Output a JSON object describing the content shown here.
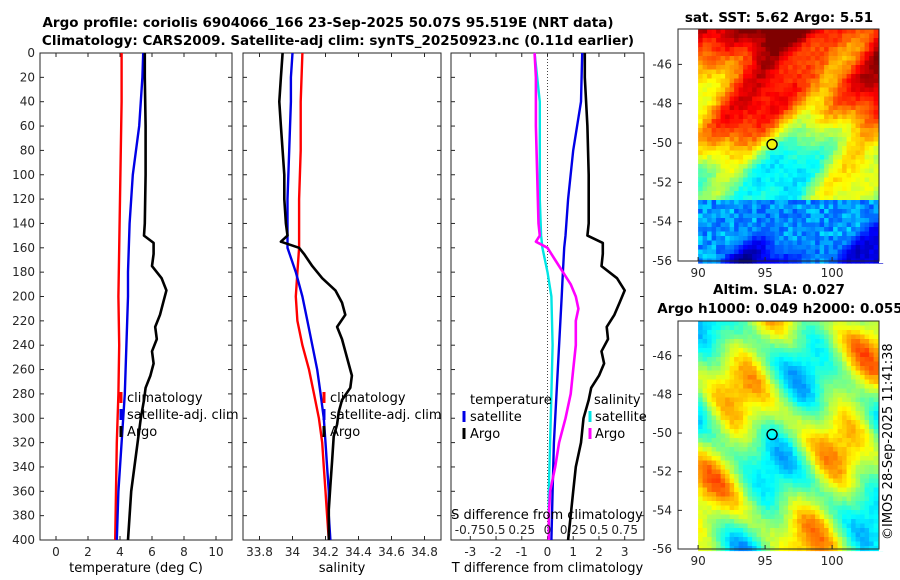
{
  "header": {
    "line1": "Argo profile: coriolis 6904066_166 23-Sep-2025 50.07S 95.519E (NRT data)",
    "line2": "Climatology: CARS2009. Satellite-adj clim: synTS_20250923.nc (0.11d earlier)"
  },
  "watermark": "©IMOS 28-Sep-2025 11:41:38",
  "colors": {
    "climatology": "#ff0000",
    "satellite": "#0000e6",
    "argo": "#000000",
    "salinity_diff": "#ff00ff",
    "temperature_diff": "#00e5e5"
  },
  "chart_data": [
    {
      "type": "line",
      "id": "temperature",
      "xlabel": "temperature (deg C)",
      "xlim": [
        -1,
        11
      ],
      "xticks": [
        "0",
        "2",
        "4",
        "6",
        "8",
        "10"
      ],
      "xtick_values": [
        0,
        2,
        4,
        6,
        8,
        10
      ],
      "ylim": [
        0,
        400
      ],
      "yticks": [
        "0",
        "20",
        "40",
        "60",
        "80",
        "100",
        "120",
        "140",
        "160",
        "180",
        "200",
        "220",
        "240",
        "260",
        "280",
        "300",
        "320",
        "340",
        "360",
        "380",
        "400"
      ],
      "legend": [
        "climatology",
        "satellite-adj. clim",
        "Argo"
      ],
      "series": [
        {
          "name": "climatology",
          "depth": [
            0,
            40,
            80,
            120,
            160,
            200,
            240,
            280,
            320,
            360,
            400
          ],
          "values": [
            4.1,
            4.1,
            4.05,
            4.0,
            3.95,
            3.9,
            3.95,
            3.9,
            3.8,
            3.75,
            3.7
          ]
        },
        {
          "name": "satellite-adj. clim",
          "depth": [
            0,
            20,
            60,
            80,
            100,
            120,
            140,
            160,
            180,
            200,
            220,
            240,
            260,
            280,
            300,
            320,
            340,
            360,
            380,
            400
          ],
          "values": [
            5.45,
            5.4,
            5.2,
            5.0,
            4.8,
            4.7,
            4.6,
            4.55,
            4.5,
            4.5,
            4.45,
            4.4,
            4.35,
            4.3,
            4.2,
            4.1,
            4.0,
            3.9,
            3.85,
            3.8
          ]
        },
        {
          "name": "Argo",
          "depth": [
            0,
            20,
            60,
            100,
            140,
            150,
            156,
            165,
            175,
            185,
            195,
            205,
            215,
            225,
            235,
            245,
            255,
            265,
            275,
            285,
            300,
            320,
            340,
            360,
            380,
            400
          ],
          "values": [
            5.55,
            5.55,
            5.6,
            5.6,
            5.55,
            5.5,
            6.1,
            6.1,
            6.0,
            6.6,
            6.9,
            6.7,
            6.5,
            6.2,
            6.3,
            6.0,
            6.1,
            5.9,
            5.6,
            5.5,
            5.3,
            5.1,
            4.9,
            4.7,
            4.6,
            4.5
          ]
        }
      ]
    },
    {
      "type": "line",
      "id": "salinity",
      "xlabel": "salinity",
      "xlim": [
        33.7,
        34.9
      ],
      "xticks": [
        "33.8",
        "34",
        "34.2",
        "34.4",
        "34.6",
        "34.8"
      ],
      "xtick_values": [
        33.8,
        34.0,
        34.2,
        34.4,
        34.6,
        34.8
      ],
      "ylim": [
        0,
        400
      ],
      "legend": [
        "climatology",
        "satellite-adj. clim",
        "Argo"
      ],
      "series": [
        {
          "name": "climatology",
          "depth": [
            0,
            40,
            80,
            120,
            160,
            180,
            200,
            220,
            240,
            260,
            280,
            300,
            320,
            340,
            360,
            380,
            400
          ],
          "values": [
            34.06,
            34.05,
            34.05,
            34.04,
            34.04,
            34.03,
            34.02,
            34.03,
            34.06,
            34.1,
            34.13,
            34.16,
            34.18,
            34.19,
            34.2,
            34.21,
            34.22
          ]
        },
        {
          "name": "satellite-adj. clim",
          "depth": [
            0,
            20,
            40,
            80,
            120,
            160,
            180,
            200,
            220,
            240,
            260,
            280,
            300,
            320,
            340,
            360,
            380,
            400
          ],
          "values": [
            34.0,
            33.99,
            33.99,
            33.98,
            33.97,
            33.97,
            34.02,
            34.06,
            34.09,
            34.12,
            34.15,
            34.17,
            34.19,
            34.2,
            34.21,
            34.22,
            34.22,
            34.23
          ]
        },
        {
          "name": "Argo",
          "depth": [
            0,
            20,
            40,
            60,
            80,
            100,
            120,
            140,
            150,
            155,
            160,
            165,
            175,
            185,
            195,
            205,
            215,
            225,
            235,
            245,
            255,
            265,
            275,
            285,
            295,
            305,
            315,
            335,
            355,
            375,
            400
          ],
          "values": [
            33.94,
            33.93,
            33.92,
            33.93,
            33.94,
            33.95,
            33.95,
            33.96,
            33.97,
            33.93,
            34.04,
            34.07,
            34.12,
            34.18,
            34.26,
            34.3,
            34.32,
            34.27,
            34.3,
            34.32,
            34.34,
            34.36,
            34.35,
            34.3,
            34.28,
            34.27,
            34.25,
            34.24,
            34.23,
            34.22,
            34.22
          ]
        }
      ]
    },
    {
      "type": "line",
      "id": "difference",
      "xlabel": "T difference from climatology",
      "top_label": "S difference from climatology",
      "xlim": [
        -3.75,
        3.75
      ],
      "xticks": [
        "-3",
        "-2",
        "-1",
        "0",
        "1",
        "2",
        "3"
      ],
      "xtick_values": [
        -3,
        -2,
        -1,
        0,
        1,
        2,
        3
      ],
      "top_ticks": [
        "-0.75",
        "0.5",
        "0.25",
        "0",
        "0.25",
        "0.5",
        "0.75"
      ],
      "top_tick_values": [
        -3,
        -2,
        -1,
        0,
        1,
        2,
        3
      ],
      "ylim": [
        0,
        400
      ],
      "legend_titles": [
        "temperature",
        "salinity"
      ],
      "legend_left": [
        "satellite",
        "Argo"
      ],
      "legend_right": [
        "satellite",
        "Argo"
      ],
      "series": [
        {
          "name": "temperature satellite",
          "depth": [
            0,
            40,
            80,
            120,
            150,
            160,
            180,
            200,
            240,
            280,
            320,
            360,
            400
          ],
          "values": [
            1.35,
            1.3,
            1.0,
            0.8,
            0.7,
            0.65,
            0.6,
            0.55,
            0.45,
            0.35,
            0.25,
            0.2,
            0.15
          ]
        },
        {
          "name": "temperature Argo",
          "depth": [
            0,
            20,
            60,
            100,
            140,
            150,
            156,
            165,
            175,
            185,
            195,
            205,
            215,
            225,
            235,
            245,
            255,
            265,
            275,
            285,
            300,
            320,
            340,
            360,
            380,
            400
          ],
          "values": [
            1.45,
            1.45,
            1.55,
            1.6,
            1.6,
            1.55,
            2.15,
            2.15,
            2.1,
            2.7,
            3.0,
            2.8,
            2.6,
            2.3,
            2.35,
            2.1,
            2.2,
            2.0,
            1.7,
            1.6,
            1.4,
            1.3,
            1.1,
            1.0,
            0.9,
            0.8
          ]
        },
        {
          "name": "salinity satellite",
          "depth": [
            0,
            40,
            80,
            120,
            150,
            160,
            180,
            200,
            240,
            280,
            320,
            360,
            400
          ],
          "values": [
            -0.5,
            -0.3,
            -0.3,
            -0.3,
            -0.25,
            -0.2,
            0.0,
            0.15,
            0.2,
            0.15,
            0.1,
            0.05,
            0.05
          ]
        },
        {
          "name": "salinity Argo",
          "depth": [
            0,
            20,
            60,
            100,
            140,
            150,
            155,
            160,
            170,
            180,
            190,
            200,
            210,
            220,
            240,
            260,
            280,
            300,
            320,
            340,
            360,
            380,
            400
          ],
          "values": [
            -0.5,
            -0.45,
            -0.45,
            -0.4,
            -0.35,
            -0.3,
            -0.45,
            0.0,
            0.3,
            0.6,
            0.9,
            1.1,
            1.2,
            1.1,
            1.1,
            1.0,
            0.9,
            0.7,
            0.45,
            0.3,
            0.1,
            0.05,
            0.05
          ]
        }
      ]
    },
    {
      "type": "heatmap",
      "id": "sst_map",
      "title": "sat. SST: 5.62 Argo: 5.51",
      "xticks": [
        "90",
        "95",
        "100"
      ],
      "xtick_values": [
        90,
        95,
        100
      ],
      "yticks": [
        "-46",
        "-48",
        "-50",
        "-52",
        "-54",
        "-56"
      ],
      "ytick_values": [
        -46,
        -48,
        -50,
        -52,
        -54,
        -56
      ],
      "xlim": [
        88.5,
        103.5
      ],
      "ylim": [
        -56,
        -44.2
      ],
      "marker": {
        "lon": 95.52,
        "lat": -50.07
      }
    },
    {
      "type": "heatmap",
      "id": "sla_map",
      "title_line1": "Altim. SLA: 0.027",
      "title_line2": "Argo h1000: 0.049 h2000: 0.055",
      "xticks": [
        "90",
        "95",
        "100"
      ],
      "xtick_values": [
        90,
        95,
        100
      ],
      "yticks": [
        "-46",
        "-48",
        "-50",
        "-52",
        "-54",
        "-56"
      ],
      "ytick_values": [
        -46,
        -48,
        -50,
        -52,
        -54,
        -56
      ],
      "xlim": [
        88.5,
        103.5
      ],
      "ylim": [
        -56,
        -44.2
      ],
      "marker": {
        "lon": 95.52,
        "lat": -50.07
      }
    }
  ]
}
